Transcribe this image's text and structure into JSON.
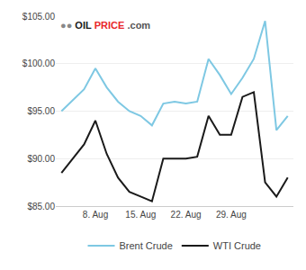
{
  "chart_data": {
    "type": "line",
    "x": [
      0,
      1,
      2,
      3,
      4,
      5,
      6,
      7,
      8,
      9,
      10,
      11,
      12,
      13,
      14,
      15,
      16,
      17,
      18,
      19,
      20
    ],
    "series": [
      {
        "name": "Brent Crude",
        "color": "#7EC8E3",
        "values": [
          95.0,
          96.2,
          97.3,
          99.5,
          97.5,
          96.0,
          95.0,
          94.5,
          93.5,
          95.8,
          96.0,
          95.8,
          96.0,
          100.5,
          98.8,
          96.8,
          98.5,
          100.5,
          104.5,
          93.0,
          94.5
        ]
      },
      {
        "name": "WTI Crude",
        "color": "#1a1a1a",
        "values": [
          88.5,
          90.0,
          91.5,
          94.0,
          90.5,
          88.0,
          86.5,
          86.0,
          85.5,
          90.0,
          90.0,
          90.0,
          90.2,
          94.5,
          92.5,
          92.5,
          96.5,
          97.0,
          87.5,
          86.0,
          88.0
        ]
      }
    ],
    "xlim": [
      -0.5,
      20.5
    ],
    "xticks": [
      {
        "value": 3,
        "label": "8. Aug"
      },
      {
        "value": 7,
        "label": "15. Aug"
      },
      {
        "value": 11,
        "label": "22. Aug"
      },
      {
        "value": 15,
        "label": "29. Aug"
      }
    ],
    "ylim": [
      85.0,
      105.0
    ],
    "yticks": [
      {
        "value": 85.0,
        "label": "$85.00"
      },
      {
        "value": 90.0,
        "label": "$90.00"
      },
      {
        "value": 95.0,
        "label": "$95.00"
      },
      {
        "value": 100.0,
        "label": "$100.00"
      },
      {
        "value": 105.0,
        "label": "$105.00"
      }
    ],
    "grid": true,
    "legend": "bottom",
    "annotations": [
      {
        "text": "●●",
        "color": "#888888"
      },
      {
        "text": "OIL",
        "color": "#1a1a1a"
      },
      {
        "text": "PRICE",
        "color": "#e8252a"
      },
      {
        "text": ".com",
        "color": "#555555"
      }
    ]
  }
}
